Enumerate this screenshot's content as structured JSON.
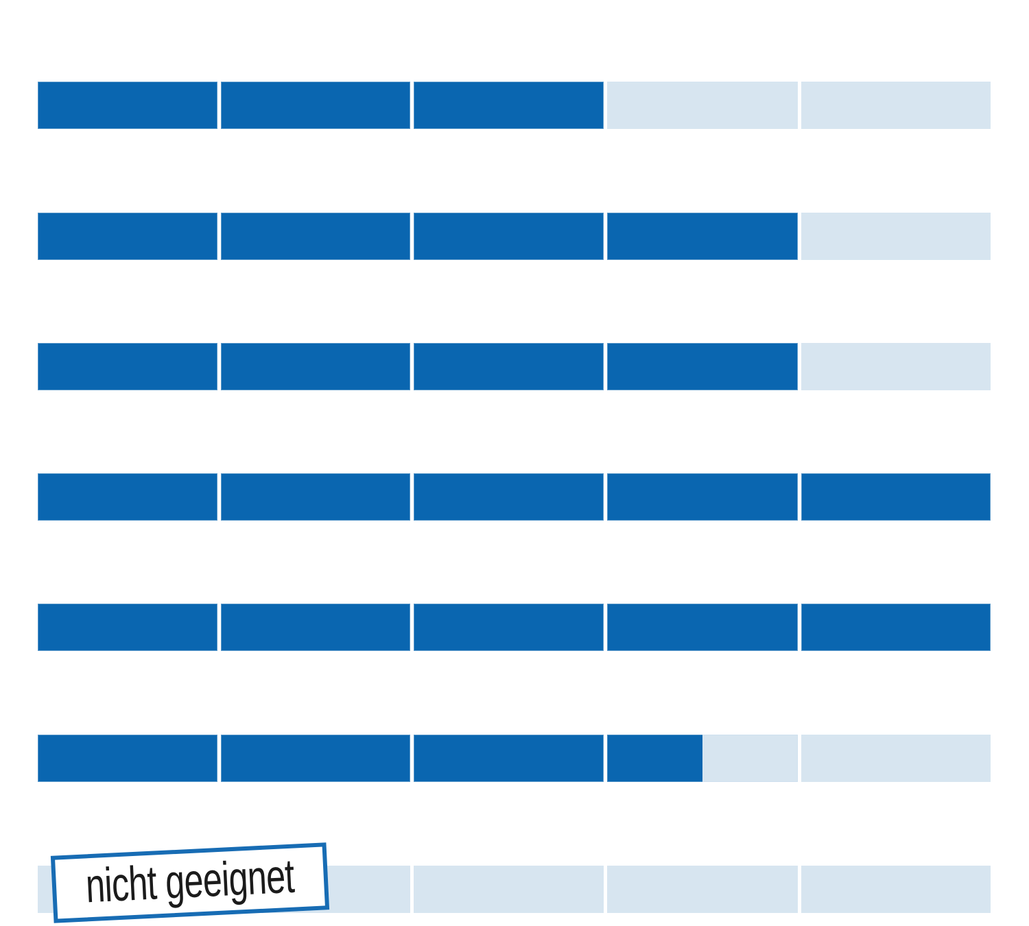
{
  "page": {
    "background": "#ffffff"
  },
  "chart_data": {
    "type": "bar",
    "subtype": "segmented-rating-bars",
    "orientation": "horizontal",
    "title": "",
    "xlabel": "",
    "ylabel": "",
    "legend_position": "none",
    "grid": false,
    "scale": {
      "min": 0,
      "max": 5,
      "segments_per_row": 5
    },
    "categories": [
      "row-1",
      "row-2",
      "row-3",
      "row-4",
      "row-5",
      "row-6",
      "row-7"
    ],
    "values": [
      3,
      4,
      4,
      5,
      5,
      3.5,
      0
    ],
    "rows": [
      {
        "filled_segments": 3
      },
      {
        "filled_segments": 4
      },
      {
        "filled_segments": 4
      },
      {
        "filled_segments": 5
      },
      {
        "filled_segments": 5
      },
      {
        "filled_segments": 3.5
      },
      {
        "filled_segments": 0,
        "annotation": "nicht geeignet"
      }
    ],
    "colors": {
      "filled": "#0a66b0",
      "empty": "#d7e5f0"
    }
  },
  "stamp": {
    "label": "nicht geeignet",
    "border_color": "#176cb4",
    "text_color": "#1b1b1b",
    "background": "#ffffff"
  }
}
